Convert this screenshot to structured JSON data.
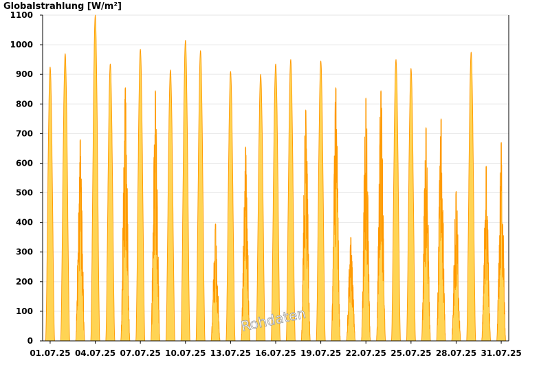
{
  "chart_data": {
    "type": "area",
    "title": "Globalstrahlung [W/m²]",
    "ylim": [
      0,
      1100
    ],
    "yticks": [
      0,
      100,
      200,
      300,
      400,
      500,
      600,
      700,
      800,
      900,
      1000,
      1100
    ],
    "xlim": [
      0,
      31
    ],
    "xtick_positions": [
      0.5,
      3.5,
      6.5,
      9.5,
      12.5,
      15.5,
      18.5,
      21.5,
      24.5,
      27.5,
      30.5
    ],
    "xtick_labels": [
      "01.07.25",
      "04.07.25",
      "07.07.25",
      "10.07.25",
      "13.07.25",
      "16.07.25",
      "19.07.25",
      "22.07.25",
      "25.07.25",
      "28.07.25",
      "31.07.25"
    ],
    "watermark": "Rohdaten",
    "colors": {
      "fill": "#ffd454",
      "line": "#ff9900"
    },
    "series": [
      {
        "x": [
          "01.07.25",
          "02.07.25",
          "03.07.25",
          "04.07.25",
          "05.07.25",
          "06.07.25",
          "07.07.25",
          "08.07.25",
          "09.07.25",
          "10.07.25",
          "11.07.25",
          "12.07.25",
          "13.07.25",
          "14.07.25",
          "15.07.25",
          "16.07.25",
          "17.07.25",
          "18.07.25",
          "19.07.25",
          "20.07.25",
          "21.07.25",
          "22.07.25",
          "23.07.25",
          "24.07.25",
          "25.07.25",
          "26.07.25",
          "27.07.25",
          "28.07.25",
          "29.07.25",
          "30.07.25",
          "31.07.25"
        ],
        "y": [
          925,
          970,
          680,
          1100,
          935,
          855,
          985,
          845,
          915,
          1015,
          980,
          395,
          910,
          655,
          900,
          935,
          950,
          780,
          945,
          855,
          350,
          820,
          845,
          950,
          920,
          720,
          750,
          505,
          975,
          590,
          670
        ]
      }
    ]
  }
}
